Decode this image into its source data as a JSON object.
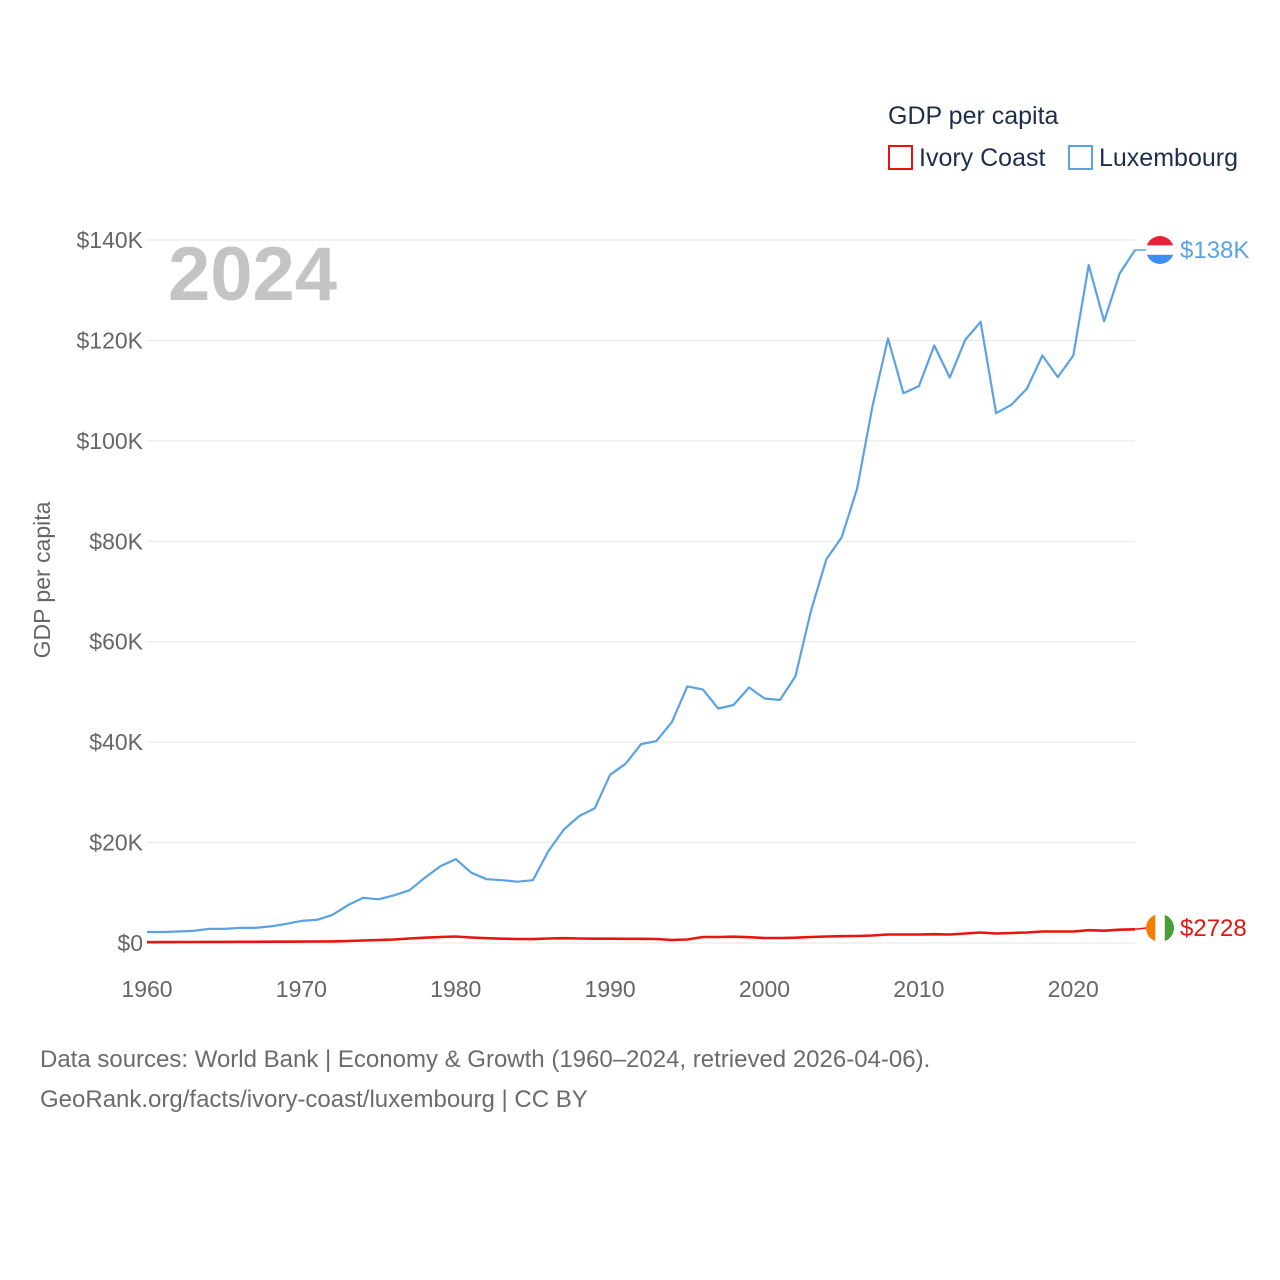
{
  "chart_data": {
    "type": "line",
    "title": "GDP per capita",
    "ylabel": "GDP per capita",
    "xlabel": "",
    "year_label": "2024",
    "xlim": [
      1960,
      2024
    ],
    "ylim": [
      0,
      140000
    ],
    "y_ticks": [
      {
        "value": 0,
        "label": "$0"
      },
      {
        "value": 20000,
        "label": "$20K"
      },
      {
        "value": 40000,
        "label": "$40K"
      },
      {
        "value": 60000,
        "label": "$60K"
      },
      {
        "value": 80000,
        "label": "$80K"
      },
      {
        "value": 100000,
        "label": "$100K"
      },
      {
        "value": 120000,
        "label": "$120K"
      },
      {
        "value": 140000,
        "label": "$140K"
      }
    ],
    "x_ticks": [
      {
        "value": 1960,
        "label": "1960"
      },
      {
        "value": 1970,
        "label": "1970"
      },
      {
        "value": 1980,
        "label": "1980"
      },
      {
        "value": 1990,
        "label": "1990"
      },
      {
        "value": 2000,
        "label": "2000"
      },
      {
        "value": 2010,
        "label": "2010"
      },
      {
        "value": 2020,
        "label": "2020"
      }
    ],
    "grid": true,
    "legend_position": "top-right",
    "x": [
      1960,
      1961,
      1962,
      1963,
      1964,
      1965,
      1966,
      1967,
      1968,
      1969,
      1970,
      1971,
      1972,
      1973,
      1974,
      1975,
      1976,
      1977,
      1978,
      1979,
      1980,
      1981,
      1982,
      1983,
      1984,
      1985,
      1986,
      1987,
      1988,
      1989,
      1990,
      1991,
      1992,
      1993,
      1994,
      1995,
      1996,
      1997,
      1998,
      1999,
      2000,
      2001,
      2002,
      2003,
      2004,
      2005,
      2006,
      2007,
      2008,
      2009,
      2010,
      2011,
      2012,
      2013,
      2014,
      2015,
      2016,
      2017,
      2018,
      2019,
      2020,
      2021,
      2022,
      2023,
      2024
    ],
    "series": [
      {
        "name": "Ivory Coast",
        "color": "#e8140f",
        "end_label": "$2728",
        "flag": "ivory-coast-flag",
        "values": [
          160,
          170,
          180,
          190,
          220,
          210,
          230,
          240,
          250,
          260,
          270,
          290,
          320,
          400,
          500,
          600,
          700,
          900,
          1050,
          1200,
          1300,
          1100,
          950,
          850,
          800,
          780,
          900,
          950,
          900,
          850,
          850,
          840,
          830,
          800,
          600,
          700,
          1200,
          1200,
          1250,
          1150,
          1000,
          1000,
          1050,
          1200,
          1300,
          1350,
          1400,
          1500,
          1700,
          1700,
          1700,
          1750,
          1700,
          1900,
          2100,
          1900,
          2000,
          2100,
          2300,
          2300,
          2300,
          2550,
          2450,
          2650,
          2728
        ]
      },
      {
        "name": "Luxembourg",
        "color": "#5aa2e3",
        "end_label": "$138K",
        "flag": "luxembourg-flag",
        "values": [
          2200,
          2200,
          2300,
          2400,
          2800,
          2800,
          3000,
          3000,
          3300,
          3800,
          4400,
          4600,
          5600,
          7500,
          9000,
          8700,
          9500,
          10500,
          13000,
          15300,
          16700,
          14000,
          12700,
          12500,
          12200,
          12500,
          18300,
          22600,
          25300,
          26800,
          33500,
          35700,
          39600,
          40200,
          44000,
          51100,
          50500,
          46700,
          47400,
          50900,
          48700,
          48400,
          53100,
          66000,
          76400,
          80800,
          90500,
          107000,
          120400,
          109500,
          110900,
          119000,
          112600,
          120100,
          123700,
          105500,
          107200,
          110400,
          117000,
          112700,
          117000,
          135000,
          123800,
          133300,
          138000
        ]
      }
    ]
  },
  "footer": {
    "line1": "Data sources: World Bank | Economy & Growth (1960–2024, retrieved 2026-04-06).",
    "line2": "GeoRank.org/facts/ivory-coast/luxembourg | CC BY"
  }
}
